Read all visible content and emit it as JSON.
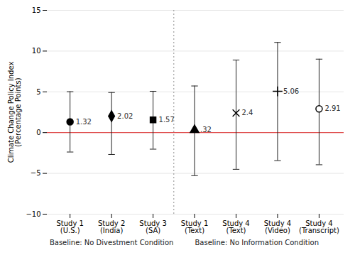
{
  "chart_data": {
    "type": "scatter",
    "ylabel": "Climate Change Policy Index\n(Percentage Points)",
    "categories": [
      "Study 1\n(U.S.)",
      "Study 2\n(India)",
      "Study 3\n(SA)",
      "Study 1\n(Text)",
      "Study 4\n(Text)",
      "Study 4\n(Video)",
      "Study 4\n(Transcript)"
    ],
    "values": [
      1.32,
      2.02,
      1.57,
      0.32,
      2.4,
      5.06,
      2.91
    ],
    "value_labels": [
      "1.32",
      "2.02",
      "1.57",
      ".32",
      "2.4",
      "5.06",
      "2.91"
    ],
    "data_labels": true,
    "error_low": [
      3.7,
      4.7,
      3.6,
      5.6,
      6.9,
      8.5,
      6.85
    ],
    "error_high": [
      3.7,
      2.9,
      3.5,
      5.4,
      6.5,
      6.0,
      6.1
    ],
    "markers": [
      "circle",
      "diamond",
      "square",
      "triangle",
      "x",
      "plus",
      "open_circle"
    ],
    "annotations": [
      {
        "text": "Baseline: No Divestment Condition",
        "categories": [
          "Study 1\n(U.S.)",
          "Study 2\n(India)",
          "Study 3\n(SA)"
        ]
      },
      {
        "text": "Baseline: No Information Condition",
        "categories": [
          "Study 1\n(Text)",
          "Study 4\n(Text)",
          "Study 4\n(Video)",
          "Study 4\n(Transcript)"
        ]
      }
    ],
    "reference_line": {
      "value": 0,
      "color": "#e05050"
    },
    "ylim": [
      -10,
      15
    ],
    "yticks": [
      -10,
      -5,
      0,
      5,
      10,
      15
    ],
    "grid": true
  }
}
